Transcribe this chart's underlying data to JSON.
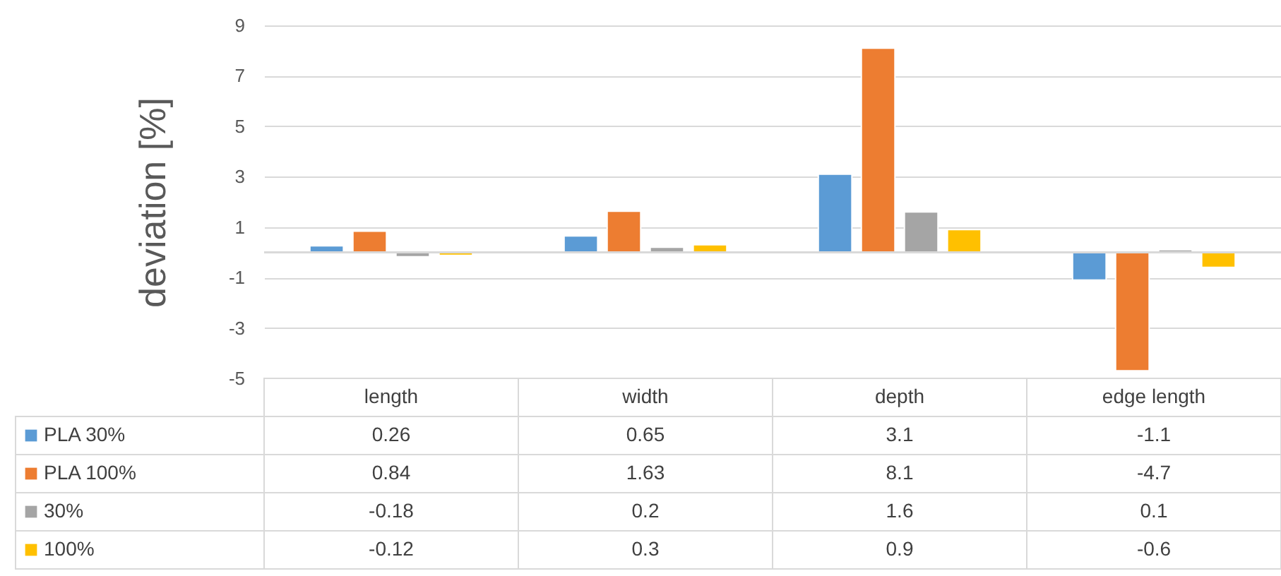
{
  "chart_data": {
    "type": "bar",
    "ylabel": "deviation [%]",
    "categories": [
      "length",
      "width",
      "depth",
      "edge length"
    ],
    "series": [
      {
        "name": "PLA 30%",
        "color": "#5b9bd5",
        "values": [
          0.26,
          0.65,
          3.1,
          -1.1
        ]
      },
      {
        "name": "PLA 100%",
        "color": "#ed7d31",
        "values": [
          0.84,
          1.63,
          8.1,
          -4.7
        ]
      },
      {
        "name": "30%",
        "color": "#a5a5a5",
        "values": [
          -0.18,
          0.2,
          1.6,
          0.1
        ]
      },
      {
        "name": "100%",
        "color": "#ffc000",
        "values": [
          -0.12,
          0.3,
          0.9,
          -0.6
        ]
      }
    ],
    "ylim": [
      -5,
      9
    ],
    "yticks": [
      -5,
      -3,
      -1,
      1,
      3,
      5,
      7,
      9
    ],
    "grid": "y",
    "legend": "bottom",
    "data_labels": true
  }
}
